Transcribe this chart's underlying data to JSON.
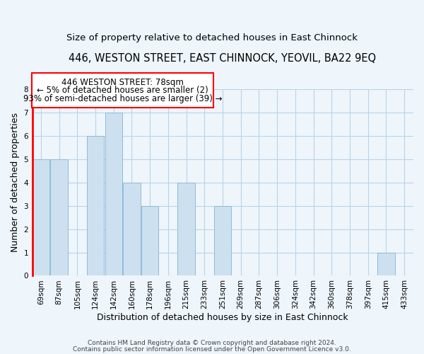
{
  "title": "446, WESTON STREET, EAST CHINNOCK, YEOVIL, BA22 9EQ",
  "subtitle": "Size of property relative to detached houses in East Chinnock",
  "xlabel": "Distribution of detached houses by size in East Chinnock",
  "ylabel": "Number of detached properties",
  "bar_color": "#cce0f0",
  "bar_edge_color": "#90bcd8",
  "categories": [
    "69sqm",
    "87sqm",
    "105sqm",
    "124sqm",
    "142sqm",
    "160sqm",
    "178sqm",
    "196sqm",
    "215sqm",
    "233sqm",
    "251sqm",
    "269sqm",
    "287sqm",
    "306sqm",
    "324sqm",
    "342sqm",
    "360sqm",
    "378sqm",
    "397sqm",
    "415sqm",
    "433sqm"
  ],
  "values": [
    5,
    5,
    0,
    6,
    7,
    4,
    3,
    0,
    4,
    0,
    3,
    0,
    0,
    0,
    0,
    0,
    0,
    0,
    0,
    1,
    0
  ],
  "ylim": [
    0,
    8
  ],
  "yticks": [
    0,
    1,
    2,
    3,
    4,
    5,
    6,
    7,
    8
  ],
  "annotation_line1": "446 WESTON STREET: 78sqm",
  "annotation_line2": "← 5% of detached houses are smaller (2)",
  "annotation_line3": "93% of semi-detached houses are larger (39) →",
  "highlight_bar_index": 0,
  "footer_line1": "Contains HM Land Registry data © Crown copyright and database right 2024.",
  "footer_line2": "Contains public sector information licensed under the Open Government Licence v3.0.",
  "bg_color": "#eef5fb",
  "grid_color": "#b8d4e8",
  "title_fontsize": 10.5,
  "subtitle_fontsize": 9.5,
  "axis_label_fontsize": 9,
  "tick_fontsize": 7.5,
  "footer_fontsize": 6.5,
  "annotation_fontsize": 8.5
}
